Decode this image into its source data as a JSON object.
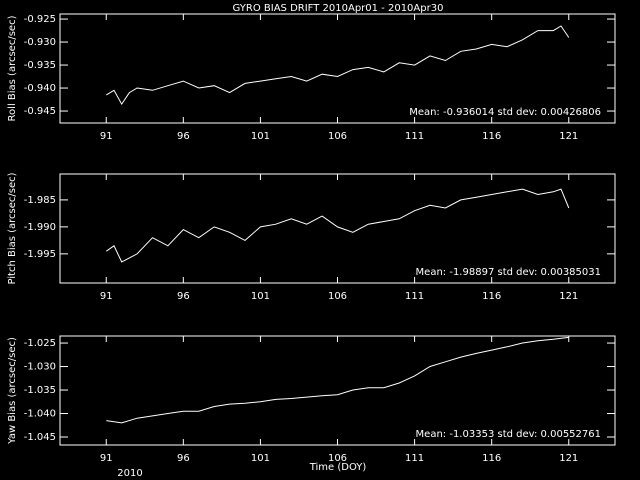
{
  "chart_data": [
    {
      "type": "line",
      "title": "GYRO BIAS DRIFT 2010Apr01 - 2010Apr30",
      "ylabel": "Roll Bias (arcsec/sec)",
      "annotation": "Mean: -0.936014 std dev: 0.00426806",
      "x": [
        91,
        91.5,
        92,
        92.5,
        93,
        94,
        95,
        96,
        97,
        98,
        99,
        100,
        101,
        102,
        103,
        104,
        105,
        106,
        107,
        108,
        109,
        110,
        111,
        112,
        113,
        114,
        115,
        116,
        117,
        118,
        119,
        120,
        120.5,
        121
      ],
      "values": [
        -0.9415,
        -0.9405,
        -0.9435,
        -0.941,
        -0.94,
        -0.9405,
        -0.9395,
        -0.9385,
        -0.94,
        -0.9395,
        -0.941,
        -0.939,
        -0.9385,
        -0.938,
        -0.9375,
        -0.9385,
        -0.937,
        -0.9375,
        -0.936,
        -0.9355,
        -0.9365,
        -0.9345,
        -0.935,
        -0.933,
        -0.934,
        -0.932,
        -0.9315,
        -0.9305,
        -0.931,
        -0.9295,
        -0.9275,
        -0.9275,
        -0.9265,
        -0.929
      ],
      "color": "#ffffff",
      "xlim": [
        88,
        124
      ],
      "xticks": [
        91,
        96,
        101,
        106,
        111,
        116,
        121
      ],
      "ylim": [
        -0.9476,
        -0.9239
      ],
      "yticks": [
        -0.945,
        {
          "value": -0.94,
          "label": "-0.940"
        },
        -0.935,
        {
          "value": -0.93,
          "label": "-0.930"
        },
        -0.925
      ]
    },
    {
      "type": "line",
      "ylabel": "Pitch Bias (arcsec/sec)",
      "annotation": "Mean: -1.98897 std dev: 0.00385031",
      "x": [
        91,
        91.5,
        92,
        93,
        94,
        95,
        96,
        97,
        98,
        99,
        100,
        101,
        102,
        103,
        104,
        105,
        106,
        107,
        108,
        109,
        110,
        111,
        112,
        113,
        114,
        115,
        116,
        117,
        118,
        119,
        120,
        120.5,
        121
      ],
      "values": [
        -1.9945,
        -1.9935,
        -1.9965,
        -1.995,
        -1.992,
        -1.9935,
        -1.9905,
        -1.992,
        -1.99,
        -1.991,
        -1.9925,
        -1.99,
        -1.9895,
        -1.9885,
        -1.9895,
        -1.988,
        -1.99,
        -1.991,
        -1.9895,
        -1.989,
        -1.9885,
        -1.987,
        -1.986,
        -1.9865,
        -1.985,
        -1.9845,
        -1.984,
        -1.9835,
        -1.983,
        -1.984,
        -1.9835,
        -1.983,
        -1.9865
      ],
      "color": "#ffffff",
      "xlim": [
        88,
        124
      ],
      "xticks": [
        91,
        96,
        101,
        106,
        111,
        116,
        121
      ],
      "ylim": [
        -2.0004,
        -1.9802
      ],
      "yticks": [
        -1.995,
        {
          "value": -1.99,
          "label": "-1.990"
        },
        -1.985
      ]
    },
    {
      "type": "line",
      "ylabel": "Yaw Bias (arcsec/sec)",
      "annotation": "Mean: -1.03353 std dev: 0.00552761",
      "xlabel": "Time (DOY)",
      "footnote": "2010",
      "x": [
        91,
        92,
        93,
        94,
        95,
        96,
        97,
        98,
        99,
        100,
        101,
        102,
        103,
        104,
        105,
        106,
        107,
        108,
        109,
        110,
        111,
        112,
        113,
        114,
        115,
        116,
        117,
        118,
        119,
        120,
        121
      ],
      "values": [
        -1.0415,
        -1.042,
        -1.041,
        -1.0405,
        -1.04,
        -1.0395,
        -1.0395,
        -1.0385,
        -1.038,
        -1.0378,
        -1.0375,
        -1.037,
        -1.0368,
        -1.0365,
        -1.0362,
        -1.036,
        -1.035,
        -1.0345,
        -1.0345,
        -1.0335,
        -1.032,
        -1.03,
        -1.029,
        -1.028,
        -1.0272,
        -1.0265,
        -1.0258,
        -1.025,
        -1.0245,
        -1.0242,
        -1.0238
      ],
      "color": "#ffffff",
      "xlim": [
        88,
        124
      ],
      "xticks": [
        91,
        96,
        101,
        106,
        111,
        116,
        121
      ],
      "ylim": [
        -1.0467,
        -1.0235
      ],
      "yticks": [
        -1.045,
        {
          "value": -1.04,
          "label": "-1.040"
        },
        -1.035,
        {
          "value": -1.03,
          "label": "-1.030"
        },
        -1.025
      ]
    }
  ]
}
